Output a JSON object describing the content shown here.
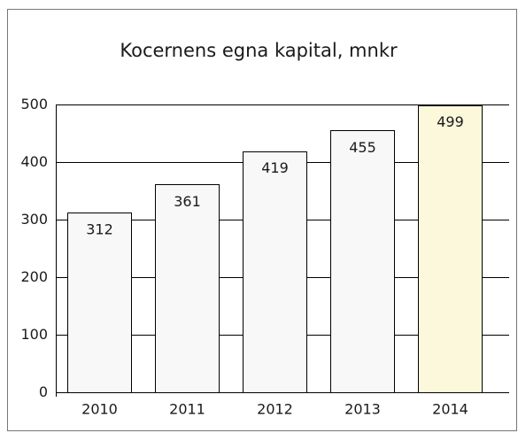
{
  "chart_data": {
    "type": "bar",
    "title": "Kocernens egna kapital, mnkr",
    "categories": [
      "2010",
      "2011",
      "2012",
      "2013",
      "2014"
    ],
    "values": [
      312,
      361,
      419,
      455,
      499
    ],
    "colors": [
      "#f8f8f8",
      "#f8f8f8",
      "#f8f8f8",
      "#f8f8f8",
      "#fbf8dc"
    ],
    "ylim": [
      0,
      500
    ],
    "yticks": [
      0,
      100,
      200,
      300,
      400,
      500
    ],
    "grid": true
  }
}
